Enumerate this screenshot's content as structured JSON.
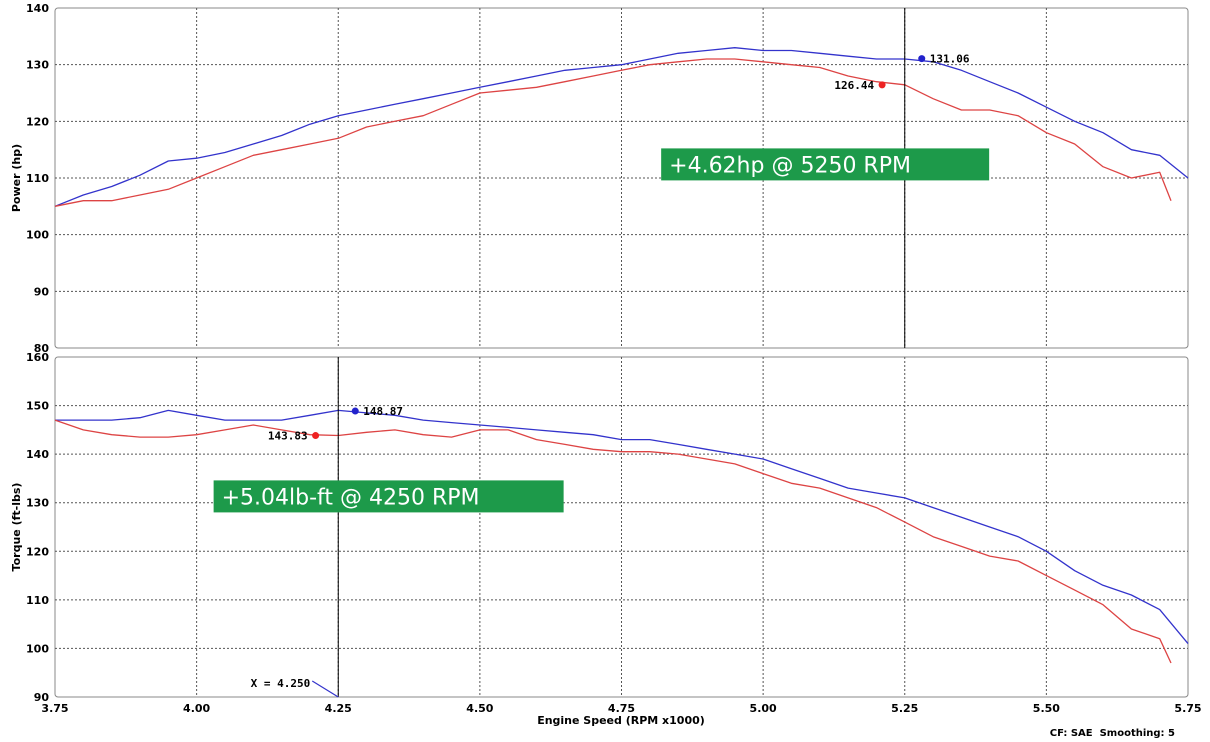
{
  "chart_data": [
    {
      "type": "line",
      "ylabel": "Power (hp)",
      "xlim": [
        3.75,
        5.75
      ],
      "ylim": [
        80,
        140
      ],
      "x_ticks": [
        "3.75",
        "4.00",
        "4.25",
        "4.50",
        "4.75",
        "5.00",
        "5.25",
        "5.50",
        "5.75"
      ],
      "y_ticks": [
        "80",
        "90",
        "100",
        "110",
        "120",
        "130",
        "140"
      ],
      "grid": true,
      "cursor_x": 5.25,
      "series": [
        {
          "color": "#3333cc",
          "x": [
            3.75,
            3.8,
            3.85,
            3.9,
            3.95,
            4.0,
            4.05,
            4.1,
            4.15,
            4.2,
            4.25,
            4.3,
            4.35,
            4.4,
            4.45,
            4.5,
            4.55,
            4.6,
            4.65,
            4.7,
            4.75,
            4.8,
            4.85,
            4.9,
            4.95,
            5.0,
            5.05,
            5.1,
            5.15,
            5.2,
            5.25,
            5.3,
            5.35,
            5.4,
            5.45,
            5.5,
            5.55,
            5.6,
            5.65,
            5.7,
            5.75
          ],
          "values": [
            105,
            107,
            108.5,
            110.5,
            113,
            113.5,
            114.5,
            116,
            117.5,
            119.5,
            121,
            122,
            123,
            124,
            125,
            126,
            127,
            128,
            129,
            129.5,
            130,
            131,
            132,
            132.5,
            133,
            132.5,
            132.5,
            132,
            131.5,
            131,
            131,
            130.5,
            129,
            127,
            125,
            122.5,
            120,
            118,
            115,
            114,
            110
          ]
        },
        {
          "color": "#dd4444",
          "x": [
            3.75,
            3.8,
            3.85,
            3.9,
            3.95,
            4.0,
            4.05,
            4.1,
            4.15,
            4.2,
            4.25,
            4.3,
            4.35,
            4.4,
            4.45,
            4.5,
            4.55,
            4.6,
            4.65,
            4.7,
            4.75,
            4.8,
            4.85,
            4.9,
            4.95,
            5.0,
            5.05,
            5.1,
            5.15,
            5.2,
            5.25,
            5.3,
            5.35,
            5.4,
            5.45,
            5.5,
            5.55,
            5.6,
            5.65,
            5.7,
            5.72
          ],
          "values": [
            105,
            106,
            106,
            107,
            108,
            110,
            112,
            114,
            115,
            116,
            117,
            119,
            120,
            121,
            123,
            125,
            125.5,
            126,
            127,
            128,
            129,
            130,
            130.5,
            131,
            131,
            130.5,
            130,
            129.5,
            128,
            127,
            126.44,
            124,
            122,
            122,
            121,
            118,
            116,
            112,
            110,
            111,
            106
          ]
        }
      ],
      "markers": [
        {
          "x": 5.28,
          "y": 131.06,
          "color": "#2222cc",
          "label": "131.06",
          "label_side": "right"
        },
        {
          "x": 5.21,
          "y": 126.44,
          "color": "#ee2222",
          "label": "126.44",
          "label_side": "left"
        }
      ],
      "annotation": {
        "text": "+4.62hp @ 5250 RPM",
        "x": 4.82,
        "y": 112.4
      }
    },
    {
      "type": "line",
      "ylabel": "Torque (ft-lbs)",
      "xlabel": "Engine Speed (RPM x1000)",
      "xlim": [
        3.75,
        5.75
      ],
      "ylim": [
        90,
        160
      ],
      "x_ticks": [
        "3.75",
        "4.00",
        "4.25",
        "4.50",
        "4.75",
        "5.00",
        "5.25",
        "5.50",
        "5.75"
      ],
      "y_ticks": [
        "90",
        "100",
        "110",
        "120",
        "130",
        "140",
        "150",
        "160"
      ],
      "grid": true,
      "cursor_x": 4.25,
      "cursor_readout": "X = 4.250",
      "series": [
        {
          "color": "#3333cc",
          "x": [
            3.75,
            3.8,
            3.85,
            3.9,
            3.95,
            4.0,
            4.05,
            4.1,
            4.15,
            4.2,
            4.25,
            4.3,
            4.35,
            4.4,
            4.45,
            4.5,
            4.55,
            4.6,
            4.65,
            4.7,
            4.75,
            4.8,
            4.85,
            4.9,
            4.95,
            5.0,
            5.05,
            5.1,
            5.15,
            5.2,
            5.25,
            5.3,
            5.35,
            5.4,
            5.45,
            5.5,
            5.55,
            5.6,
            5.65,
            5.7,
            5.75
          ],
          "values": [
            147,
            147,
            147,
            147.5,
            149,
            148,
            147,
            147,
            147,
            148,
            149,
            148.5,
            148,
            147,
            146.5,
            146,
            145.5,
            145,
            144.5,
            144,
            143,
            143,
            142,
            141,
            140,
            139,
            137,
            135,
            133,
            132,
            131,
            129,
            127,
            125,
            123,
            120,
            116,
            113,
            111,
            108,
            101
          ]
        },
        {
          "color": "#dd4444",
          "x": [
            3.75,
            3.8,
            3.85,
            3.9,
            3.95,
            4.0,
            4.05,
            4.1,
            4.15,
            4.2,
            4.25,
            4.3,
            4.35,
            4.4,
            4.45,
            4.5,
            4.55,
            4.6,
            4.65,
            4.7,
            4.75,
            4.8,
            4.85,
            4.9,
            4.95,
            5.0,
            5.05,
            5.1,
            5.15,
            5.2,
            5.25,
            5.3,
            5.35,
            5.4,
            5.45,
            5.5,
            5.55,
            5.6,
            5.65,
            5.7,
            5.72
          ],
          "values": [
            147,
            145,
            144,
            143.5,
            143.5,
            144,
            145,
            146,
            145,
            144,
            143.83,
            144.5,
            145,
            144,
            143.5,
            145,
            145,
            143,
            142,
            141,
            140.5,
            140.5,
            140,
            139,
            138,
            136,
            134,
            133,
            131,
            129,
            126,
            123,
            121,
            119,
            118,
            115,
            112,
            109,
            104,
            102,
            97
          ]
        }
      ],
      "markers": [
        {
          "x": 4.28,
          "y": 148.87,
          "color": "#2222cc",
          "label": "148.87",
          "label_side": "right"
        },
        {
          "x": 4.21,
          "y": 143.83,
          "color": "#ee2222",
          "label": "143.83",
          "label_side": "left"
        }
      ],
      "annotation": {
        "text": "+5.04lb-ft @ 4250 RPM",
        "x": 4.03,
        "y": 131.3
      }
    }
  ],
  "footer_text": "CF: SAE  Smoothing: 5"
}
